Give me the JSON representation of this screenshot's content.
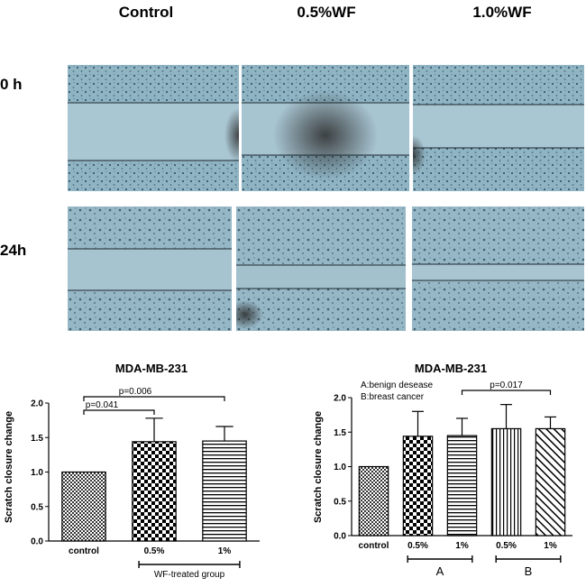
{
  "figure": {
    "column_labels": [
      "Control",
      "0.5%WF",
      "1.0%WF"
    ],
    "row_labels": [
      "0 h",
      "24h"
    ]
  },
  "chart_data": [
    {
      "type": "bar",
      "title": "MDA-MB-231",
      "ylabel": "Scratch closure change",
      "categories": [
        "control",
        "0.5%",
        "1%"
      ],
      "values": [
        1.0,
        1.44,
        1.45
      ],
      "error_upper": [
        0,
        1.78,
        1.66
      ],
      "patterns": [
        "fine-check",
        "checker",
        "hstripes"
      ],
      "ylim": [
        0,
        2.0
      ],
      "yticks": [
        "0.0",
        "0.5",
        "1.0",
        "1.5",
        "2.0"
      ],
      "significance": [
        {
          "label": "p=0.041",
          "from": 0,
          "to": 1
        },
        {
          "label": "p=0.006",
          "from": 0,
          "to": 2
        }
      ],
      "group_bracket": {
        "label": "WF-treated group",
        "from": 1,
        "to": 2
      }
    },
    {
      "type": "bar",
      "title": "MDA-MB-231",
      "ylabel": "Scratch closure change",
      "legend_text": [
        "A:benign desease",
        "B:breast cancer"
      ],
      "categories": [
        "control",
        "0.5%",
        "1%",
        "0.5%",
        "1%"
      ],
      "values": [
        1.0,
        1.44,
        1.45,
        1.55,
        1.55
      ],
      "error_upper": [
        0,
        1.8,
        1.7,
        1.9,
        1.72
      ],
      "patterns": [
        "fine-check",
        "checker",
        "hstripes",
        "vstripes",
        "diag"
      ],
      "ylim": [
        0,
        2.0
      ],
      "yticks": [
        "0.0",
        "0.5",
        "1.0",
        "1.5",
        "2.0"
      ],
      "significance": [
        {
          "label": "p=0.017",
          "from": 2,
          "to": 4
        }
      ],
      "groups": [
        {
          "label": "A",
          "from": 1,
          "to": 2
        },
        {
          "label": "B",
          "from": 3,
          "to": 4
        }
      ]
    }
  ]
}
